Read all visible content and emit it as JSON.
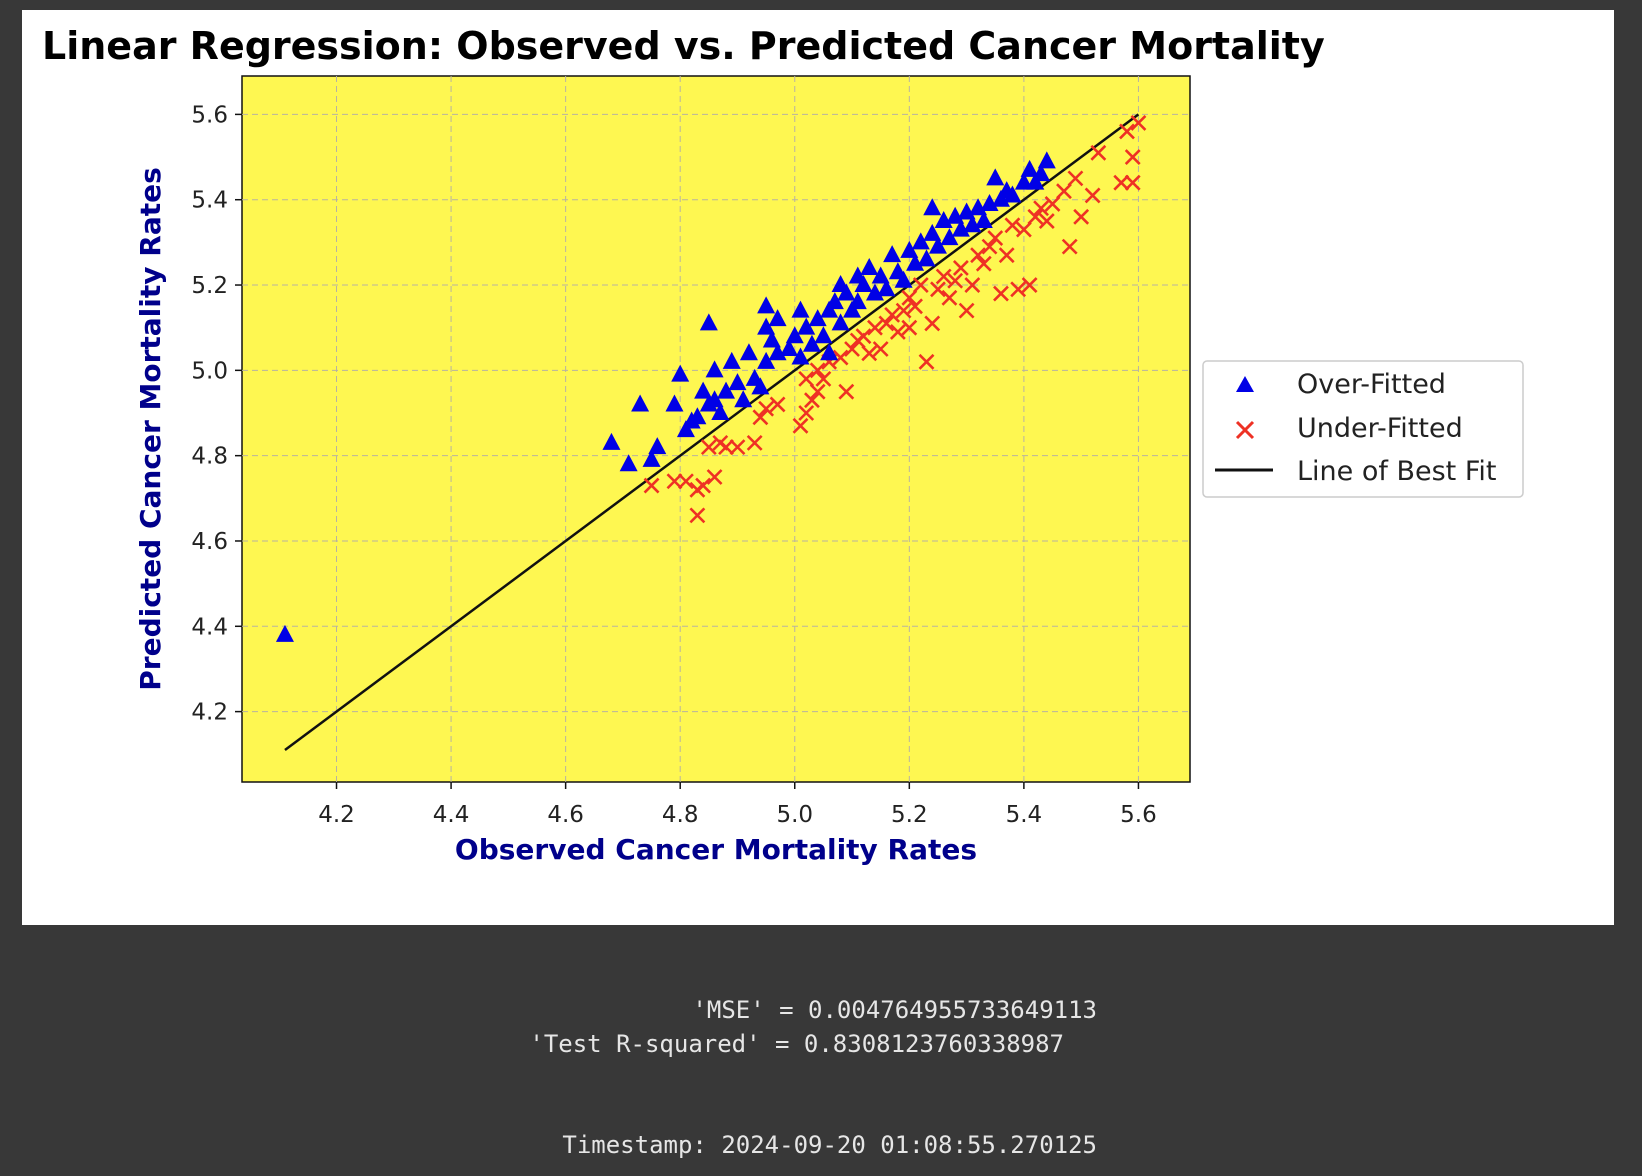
{
  "colors": {
    "page_background": "#383838",
    "figure_background": "#ffffff",
    "plot_background": "#fef751",
    "over_fitted": "#0000e6",
    "under_fitted": "#ee3124",
    "best_fit_line": "#111111",
    "axis_label": "#00008b",
    "output_text": "#e6e6e6"
  },
  "chart_data": {
    "type": "scatter",
    "title": "Linear Regression: Observed vs. Predicted Cancer Mortality",
    "xlabel": "Observed Cancer Mortality Rates",
    "ylabel": "Predicted Cancer Mortality Rates",
    "xlim": [
      4.035,
      5.69
    ],
    "ylim": [
      4.035,
      5.69
    ],
    "x_ticks": [
      "4.2",
      "4.4",
      "4.6",
      "4.8",
      "5.0",
      "5.2",
      "5.4",
      "5.6"
    ],
    "y_ticks": [
      "4.2",
      "4.4",
      "4.6",
      "4.8",
      "5.0",
      "5.2",
      "5.4",
      "5.6"
    ],
    "grid": true,
    "legend_placement": "center-right-outside",
    "series": [
      {
        "name": "Over-Fitted",
        "marker": "triangle",
        "points": [
          [
            4.11,
            4.38
          ],
          [
            4.68,
            4.83
          ],
          [
            4.71,
            4.78
          ],
          [
            4.75,
            4.79
          ],
          [
            4.76,
            4.82
          ],
          [
            4.73,
            4.92
          ],
          [
            4.79,
            4.92
          ],
          [
            4.8,
            4.99
          ],
          [
            4.81,
            4.86
          ],
          [
            4.82,
            4.88
          ],
          [
            4.83,
            4.89
          ],
          [
            4.84,
            4.95
          ],
          [
            4.85,
            4.92
          ],
          [
            4.86,
            4.93
          ],
          [
            4.86,
            5.0
          ],
          [
            4.87,
            4.9
          ],
          [
            4.88,
            4.95
          ],
          [
            4.89,
            5.02
          ],
          [
            4.9,
            4.97
          ],
          [
            4.91,
            4.93
          ],
          [
            4.92,
            5.04
          ],
          [
            4.93,
            4.98
          ],
          [
            4.94,
            4.96
          ],
          [
            4.95,
            5.02
          ],
          [
            4.96,
            5.07
          ],
          [
            4.97,
            5.04
          ],
          [
            4.95,
            5.1
          ],
          [
            4.95,
            5.15
          ],
          [
            4.97,
            5.12
          ],
          [
            4.85,
            5.11
          ],
          [
            4.99,
            5.05
          ],
          [
            5.0,
            5.08
          ],
          [
            5.01,
            5.03
          ],
          [
            5.01,
            5.14
          ],
          [
            5.02,
            5.1
          ],
          [
            5.03,
            5.06
          ],
          [
            5.04,
            5.12
          ],
          [
            5.05,
            5.08
          ],
          [
            5.06,
            5.14
          ],
          [
            5.06,
            5.04
          ],
          [
            5.07,
            5.16
          ],
          [
            5.08,
            5.11
          ],
          [
            5.08,
            5.2
          ],
          [
            5.09,
            5.18
          ],
          [
            5.1,
            5.14
          ],
          [
            5.11,
            5.22
          ],
          [
            5.11,
            5.16
          ],
          [
            5.12,
            5.2
          ],
          [
            5.13,
            5.24
          ],
          [
            5.14,
            5.18
          ],
          [
            5.15,
            5.22
          ],
          [
            5.16,
            5.19
          ],
          [
            5.17,
            5.27
          ],
          [
            5.18,
            5.23
          ],
          [
            5.19,
            5.21
          ],
          [
            5.2,
            5.28
          ],
          [
            5.21,
            5.25
          ],
          [
            5.22,
            5.3
          ],
          [
            5.23,
            5.26
          ],
          [
            5.24,
            5.32
          ],
          [
            5.24,
            5.38
          ],
          [
            5.25,
            5.29
          ],
          [
            5.26,
            5.35
          ],
          [
            5.27,
            5.31
          ],
          [
            5.28,
            5.36
          ],
          [
            5.29,
            5.33
          ],
          [
            5.3,
            5.37
          ],
          [
            5.31,
            5.34
          ],
          [
            5.32,
            5.38
          ],
          [
            5.33,
            5.35
          ],
          [
            5.34,
            5.39
          ],
          [
            5.35,
            5.45
          ],
          [
            5.36,
            5.4
          ],
          [
            5.37,
            5.42
          ],
          [
            5.38,
            5.41
          ],
          [
            5.4,
            5.44
          ],
          [
            5.41,
            5.47
          ],
          [
            5.42,
            5.44
          ],
          [
            5.43,
            5.46
          ],
          [
            5.44,
            5.49
          ]
        ]
      },
      {
        "name": "Under-Fitted",
        "marker": "x",
        "points": [
          [
            4.75,
            4.73
          ],
          [
            4.79,
            4.74
          ],
          [
            4.81,
            4.74
          ],
          [
            4.83,
            4.72
          ],
          [
            4.84,
            4.73
          ],
          [
            4.83,
            4.66
          ],
          [
            4.86,
            4.75
          ],
          [
            4.85,
            4.82
          ],
          [
            4.87,
            4.83
          ],
          [
            4.88,
            4.82
          ],
          [
            4.9,
            4.82
          ],
          [
            4.93,
            4.83
          ],
          [
            4.94,
            4.89
          ],
          [
            4.95,
            4.91
          ],
          [
            4.97,
            4.92
          ],
          [
            5.01,
            4.87
          ],
          [
            5.02,
            4.9
          ],
          [
            5.03,
            4.93
          ],
          [
            5.04,
            4.95
          ],
          [
            5.02,
            4.98
          ],
          [
            5.04,
            5.0
          ],
          [
            5.05,
            4.98
          ],
          [
            5.06,
            5.02
          ],
          [
            5.08,
            5.03
          ],
          [
            5.09,
            4.95
          ],
          [
            5.1,
            5.05
          ],
          [
            5.11,
            5.07
          ],
          [
            5.12,
            5.08
          ],
          [
            5.13,
            5.04
          ],
          [
            5.14,
            5.1
          ],
          [
            5.15,
            5.05
          ],
          [
            5.16,
            5.11
          ],
          [
            5.17,
            5.13
          ],
          [
            5.18,
            5.09
          ],
          [
            5.19,
            5.14
          ],
          [
            5.2,
            5.1
          ],
          [
            5.2,
            5.17
          ],
          [
            5.21,
            5.15
          ],
          [
            5.22,
            5.2
          ],
          [
            5.23,
            5.02
          ],
          [
            5.24,
            5.11
          ],
          [
            5.25,
            5.19
          ],
          [
            5.26,
            5.22
          ],
          [
            5.27,
            5.17
          ],
          [
            5.28,
            5.21
          ],
          [
            5.29,
            5.24
          ],
          [
            5.3,
            5.14
          ],
          [
            5.31,
            5.2
          ],
          [
            5.32,
            5.27
          ],
          [
            5.33,
            5.25
          ],
          [
            5.34,
            5.29
          ],
          [
            5.35,
            5.31
          ],
          [
            5.36,
            5.18
          ],
          [
            5.37,
            5.27
          ],
          [
            5.38,
            5.34
          ],
          [
            5.39,
            5.19
          ],
          [
            5.4,
            5.33
          ],
          [
            5.41,
            5.2
          ],
          [
            5.42,
            5.36
          ],
          [
            5.43,
            5.38
          ],
          [
            5.44,
            5.35
          ],
          [
            5.45,
            5.39
          ],
          [
            5.47,
            5.42
          ],
          [
            5.48,
            5.29
          ],
          [
            5.49,
            5.45
          ],
          [
            5.5,
            5.36
          ],
          [
            5.52,
            5.41
          ],
          [
            5.53,
            5.51
          ],
          [
            5.57,
            5.44
          ],
          [
            5.58,
            5.56
          ],
          [
            5.59,
            5.5
          ],
          [
            5.59,
            5.44
          ],
          [
            5.6,
            5.58
          ]
        ]
      },
      {
        "name": "Line of Best Fit",
        "marker": "line",
        "points": [
          [
            4.11,
            4.11
          ],
          [
            5.6,
            5.6
          ]
        ]
      }
    ]
  },
  "output": {
    "mse_line": "'MSE' = 0.004764955733649113",
    "r2_line": "'Test R-squared' = 0.8308123760338987",
    "timestamp_line": "Timestamp: 2024-09-20 01:08:55.270125"
  }
}
